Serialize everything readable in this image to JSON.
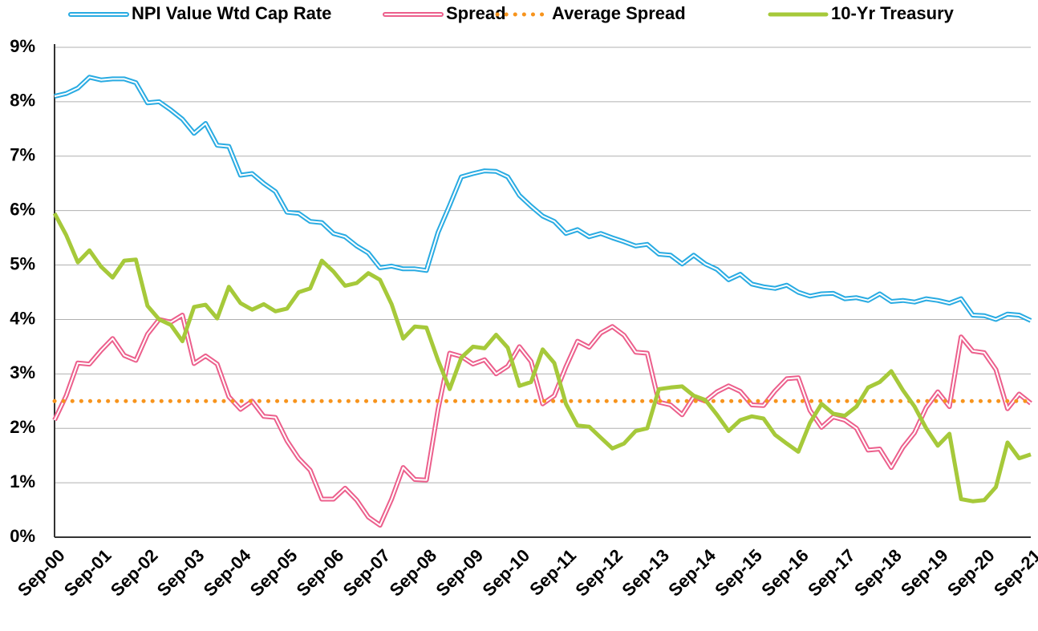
{
  "chart_data": {
    "type": "line",
    "categories": [
      "Sep-00",
      null,
      null,
      null,
      "Sep-01",
      null,
      null,
      null,
      "Sep-02",
      null,
      null,
      null,
      "Sep-03",
      null,
      null,
      null,
      "Sep-04",
      null,
      null,
      null,
      "Sep-05",
      null,
      null,
      null,
      "Sep-06",
      null,
      null,
      null,
      "Sep-07",
      null,
      null,
      null,
      "Sep-08",
      null,
      null,
      null,
      "Sep-09",
      null,
      null,
      null,
      "Sep-10",
      null,
      null,
      null,
      "Sep-11",
      null,
      null,
      null,
      "Sep-12",
      null,
      null,
      null,
      "Sep-13",
      null,
      null,
      null,
      "Sep-14",
      null,
      null,
      null,
      "Sep-15",
      null,
      null,
      null,
      "Sep-16",
      null,
      null,
      null,
      "Sep-17",
      null,
      null,
      null,
      "Sep-18",
      null,
      null,
      null,
      "Sep-19",
      null,
      null,
      null,
      "Sep-20",
      null,
      null,
      null,
      "Sep-21"
    ],
    "series": [
      {
        "name": "NPI Value Wtd Cap Rate",
        "color": "#29abe2",
        "style": "double",
        "values": [
          8.1,
          8.15,
          8.25,
          8.45,
          8.4,
          8.42,
          8.42,
          8.35,
          7.98,
          8.0,
          7.85,
          7.68,
          7.42,
          7.6,
          7.2,
          7.18,
          6.65,
          6.68,
          6.5,
          6.35,
          5.97,
          5.95,
          5.8,
          5.78,
          5.58,
          5.52,
          5.35,
          5.22,
          4.95,
          4.98,
          4.93,
          4.93,
          4.9,
          5.6,
          6.1,
          6.62,
          6.68,
          6.73,
          6.72,
          6.62,
          6.28,
          6.08,
          5.9,
          5.8,
          5.58,
          5.65,
          5.52,
          5.58,
          5.5,
          5.43,
          5.35,
          5.38,
          5.2,
          5.18,
          5.02,
          5.18,
          5.02,
          4.92,
          4.73,
          4.83,
          4.65,
          4.6,
          4.57,
          4.63,
          4.5,
          4.43,
          4.47,
          4.48,
          4.38,
          4.4,
          4.35,
          4.47,
          4.33,
          4.35,
          4.32,
          4.38,
          4.35,
          4.3,
          4.38,
          4.08,
          4.07,
          4.0,
          4.1,
          4.08,
          3.98
        ]
      },
      {
        "name": "Spread",
        "color": "#ec5f8c",
        "style": "double",
        "values": [
          2.15,
          2.6,
          3.2,
          3.18,
          3.43,
          3.65,
          3.34,
          3.25,
          3.73,
          4.0,
          3.95,
          4.08,
          3.19,
          3.33,
          3.18,
          2.58,
          2.35,
          2.5,
          2.22,
          2.2,
          1.77,
          1.45,
          1.23,
          0.7,
          0.7,
          0.9,
          0.68,
          0.37,
          0.22,
          0.7,
          1.28,
          1.06,
          1.05,
          2.35,
          3.38,
          3.32,
          3.18,
          3.26,
          3.0,
          3.14,
          3.5,
          3.23,
          2.45,
          2.6,
          3.13,
          3.6,
          3.49,
          3.75,
          3.87,
          3.71,
          3.4,
          3.38,
          2.48,
          2.43,
          2.25,
          2.58,
          2.5,
          2.67,
          2.78,
          2.68,
          2.43,
          2.42,
          2.69,
          2.91,
          2.93,
          2.33,
          2.02,
          2.21,
          2.15,
          2.0,
          1.6,
          1.62,
          1.28,
          1.65,
          1.92,
          2.38,
          2.67,
          2.4,
          3.68,
          3.42,
          3.39,
          3.08,
          2.36,
          2.63,
          2.46
        ]
      },
      {
        "name": "Average Spread",
        "color": "#f7941d",
        "style": "dotted",
        "value": 2.5
      },
      {
        "name": "10-Yr Treasury",
        "color": "#a6c93a",
        "style": "solid",
        "values": [
          5.95,
          5.55,
          5.05,
          5.27,
          4.97,
          4.77,
          5.08,
          5.1,
          4.25,
          4.0,
          3.9,
          3.6,
          4.23,
          4.27,
          4.02,
          4.6,
          4.3,
          4.18,
          4.28,
          4.15,
          4.2,
          4.5,
          4.57,
          5.08,
          4.88,
          4.62,
          4.67,
          4.85,
          4.73,
          4.28,
          3.65,
          3.87,
          3.85,
          3.25,
          2.72,
          3.3,
          3.5,
          3.47,
          3.72,
          3.48,
          2.78,
          2.85,
          3.45,
          3.2,
          2.45,
          2.05,
          2.03,
          1.83,
          1.63,
          1.72,
          1.95,
          2.0,
          2.72,
          2.75,
          2.77,
          2.6,
          2.52,
          2.25,
          1.95,
          2.15,
          2.22,
          2.18,
          1.88,
          1.72,
          1.57,
          2.1,
          2.45,
          2.27,
          2.23,
          2.4,
          2.75,
          2.85,
          3.05,
          2.7,
          2.4,
          2.0,
          1.68,
          1.9,
          0.7,
          0.66,
          0.68,
          0.92,
          1.74,
          1.45,
          1.52
        ]
      }
    ],
    "ylim": [
      0,
      9
    ],
    "yticks": [
      {
        "value": 0,
        "label": "0%"
      },
      {
        "value": 1,
        "label": "1%"
      },
      {
        "value": 2,
        "label": "2%"
      },
      {
        "value": 3,
        "label": "3%"
      },
      {
        "value": 4,
        "label": "4%"
      },
      {
        "value": 5,
        "label": "5%"
      },
      {
        "value": 6,
        "label": "6%"
      },
      {
        "value": 7,
        "label": "7%"
      },
      {
        "value": 8,
        "label": "8%"
      },
      {
        "value": 9,
        "label": "9%"
      }
    ],
    "grid": true,
    "legend": "top"
  }
}
